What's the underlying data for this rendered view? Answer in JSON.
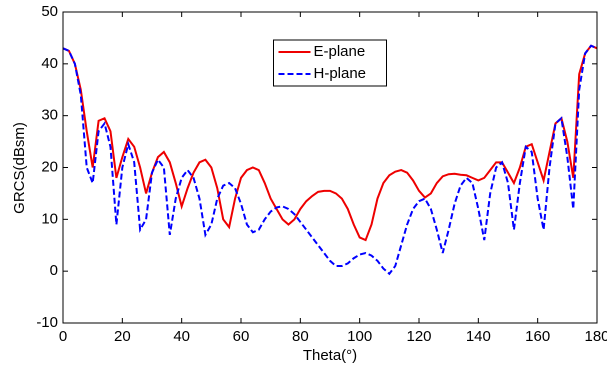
{
  "chart_data": {
    "type": "line",
    "xlabel": "Theta(°)",
    "ylabel": "GRCS(dBsm)",
    "x": [
      0,
      2,
      4,
      6,
      8,
      10,
      12,
      14,
      16,
      18,
      20,
      22,
      24,
      26,
      28,
      30,
      32,
      34,
      36,
      38,
      40,
      42,
      44,
      46,
      48,
      50,
      52,
      54,
      56,
      58,
      60,
      62,
      64,
      66,
      68,
      70,
      72,
      74,
      76,
      78,
      80,
      82,
      84,
      86,
      88,
      90,
      92,
      94,
      96,
      98,
      100,
      102,
      104,
      106,
      108,
      110,
      112,
      114,
      116,
      118,
      120,
      122,
      124,
      126,
      128,
      130,
      132,
      134,
      136,
      138,
      140,
      142,
      144,
      146,
      148,
      150,
      152,
      154,
      156,
      158,
      160,
      162,
      164,
      166,
      168,
      170,
      172,
      174,
      176,
      178,
      180
    ],
    "series": [
      {
        "name": "E-plane",
        "color": "#ee0000",
        "dash": false,
        "values": [
          43,
          42.5,
          40,
          35,
          27,
          20,
          29,
          29.5,
          27,
          18,
          22,
          25.5,
          24,
          20,
          15,
          19,
          22,
          23,
          21,
          17,
          12.5,
          16,
          19,
          21,
          21.5,
          20,
          16,
          10,
          8.5,
          14,
          18,
          19.5,
          20,
          19.5,
          17,
          14,
          12,
          10,
          9,
          10,
          12,
          13.5,
          14.5,
          15.3,
          15.5,
          15.5,
          15,
          14,
          12,
          9,
          6.5,
          6,
          9,
          14,
          17,
          18.5,
          19.2,
          19.5,
          19,
          17.5,
          15.5,
          14.2,
          15,
          17,
          18.3,
          18.7,
          18.8,
          18.6,
          18.5,
          18,
          17.5,
          18,
          19.5,
          21,
          21,
          19,
          17,
          20,
          24,
          24.5,
          21,
          17.5,
          23,
          28.5,
          29.5,
          25,
          18,
          38,
          42,
          43.5,
          43
        ]
      },
      {
        "name": "H-plane",
        "color": "#0000ff",
        "dash": true,
        "values": [
          43,
          42.5,
          40,
          34,
          20,
          17,
          27,
          28.5,
          24,
          9,
          20,
          24.5,
          21,
          8,
          10,
          19,
          21.5,
          20,
          7,
          14,
          18,
          19.5,
          18,
          14,
          7,
          9,
          14,
          16.5,
          17,
          16,
          13,
          9,
          7.5,
          8,
          10,
          11.5,
          12.3,
          12.5,
          12,
          11,
          9.5,
          8,
          6.5,
          5,
          3.5,
          2,
          1,
          1,
          1.5,
          2.5,
          3.2,
          3.5,
          3,
          2,
          0.5,
          -0.5,
          1,
          5,
          9,
          12,
          13.5,
          14,
          12,
          8,
          3.5,
          8,
          13,
          16.5,
          18,
          17,
          12,
          6,
          15,
          20,
          21,
          17,
          8,
          17,
          24,
          23,
          14,
          8,
          20,
          28.5,
          29.5,
          22,
          12,
          35,
          42,
          43.5,
          43
        ]
      }
    ],
    "xlim": [
      0,
      180
    ],
    "xticks": [
      0,
      20,
      40,
      60,
      80,
      100,
      120,
      140,
      160,
      180
    ],
    "ylim": [
      -10,
      50
    ],
    "yticks": [
      -10,
      0,
      10,
      20,
      30,
      40,
      50
    ],
    "legend": "upper center"
  }
}
